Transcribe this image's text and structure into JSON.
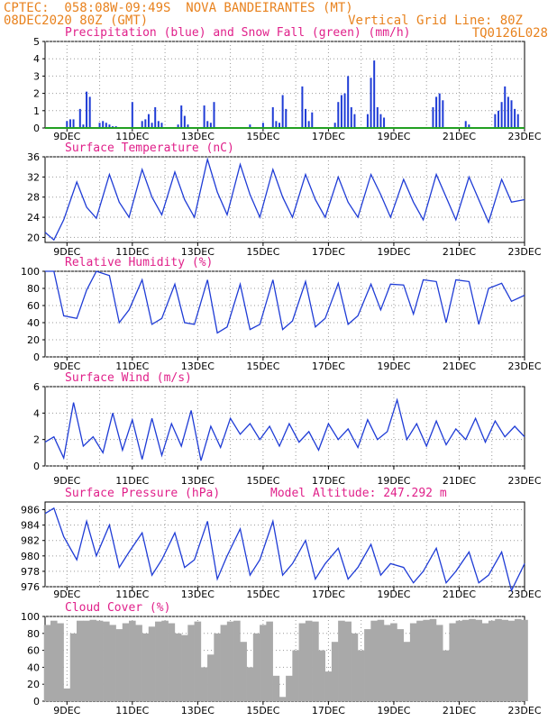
{
  "header": {
    "line1_left": "CPTEC:  058:08W-09:49S  NOVA BANDEIRANTES (MT)",
    "line2_left": "08DEC2020 80Z (GMT)",
    "line2_right": "Vertical Grid Line: 80Z",
    "line3_right": "TQ0126L028"
  },
  "colors": {
    "header": "#e8821e",
    "title": "#e0208a",
    "series": "#1f3cd6",
    "snow": "#22a022",
    "cloud": "#a9a9a9"
  },
  "x_ticks": [
    "9DEC",
    "11DEC",
    "13DEC",
    "15DEC",
    "17DEC",
    "19DEC",
    "21DEC",
    "23DEC"
  ],
  "chart_data": [
    {
      "type": "bar",
      "title": "Precipitation (blue) and Snow Fall (green) (mm/h)",
      "ylim": [
        0,
        5
      ],
      "yticks": [
        0,
        1,
        2,
        3,
        4,
        5
      ],
      "x_range_days": [
        8.33,
        23.0
      ],
      "series": [
        {
          "name": "Precipitation",
          "x": [
            9.0,
            9.1,
            9.2,
            9.4,
            9.5,
            9.6,
            9.7,
            10.0,
            10.1,
            10.2,
            10.3,
            10.4,
            10.5,
            11.0,
            11.3,
            11.4,
            11.5,
            11.6,
            11.7,
            11.8,
            11.9,
            12.4,
            12.5,
            12.6,
            12.7,
            13.2,
            13.3,
            13.4,
            13.5,
            14.6,
            15.0,
            15.3,
            15.4,
            15.5,
            15.6,
            15.7,
            16.2,
            16.3,
            16.4,
            16.5,
            17.2,
            17.3,
            17.4,
            17.5,
            17.6,
            17.7,
            17.8,
            18.2,
            18.3,
            18.4,
            18.5,
            18.6,
            18.7,
            20.2,
            20.3,
            20.4,
            20.5,
            21.2,
            21.3,
            22.1,
            22.2,
            22.3,
            22.4,
            22.5,
            22.6,
            22.7,
            22.8
          ],
          "values": [
            0.4,
            0.5,
            0.5,
            1.1,
            0.2,
            2.1,
            1.8,
            0.3,
            0.4,
            0.3,
            0.2,
            0.1,
            0.1,
            1.5,
            0.4,
            0.5,
            0.8,
            0.3,
            1.2,
            0.4,
            0.3,
            0.2,
            1.3,
            0.7,
            0.2,
            1.3,
            0.4,
            0.3,
            1.5,
            0.2,
            0.3,
            1.2,
            0.4,
            0.3,
            1.9,
            1.1,
            2.4,
            1.1,
            0.4,
            0.9,
            0.3,
            1.5,
            1.9,
            2.0,
            3.0,
            1.2,
            0.8,
            0.8,
            2.9,
            3.9,
            1.2,
            0.8,
            0.6,
            1.2,
            1.8,
            2.0,
            1.6,
            0.4,
            0.2,
            0.8,
            1.0,
            1.5,
            2.4,
            1.8,
            1.6,
            1.1,
            0.8
          ]
        },
        {
          "name": "Snow Fall",
          "x": [
            8.33,
            23.0
          ],
          "values": [
            0,
            0
          ]
        }
      ]
    },
    {
      "type": "line",
      "title": "Surface Temperature (nC)",
      "ylim": [
        19,
        36
      ],
      "yticks": [
        20,
        24,
        28,
        32,
        36
      ],
      "x_range_days": [
        8.33,
        23.0
      ],
      "series": [
        {
          "name": "Surface Temperature",
          "x": [
            8.33,
            8.6,
            8.9,
            9.3,
            9.6,
            9.9,
            10.3,
            10.6,
            10.9,
            11.3,
            11.6,
            11.9,
            12.3,
            12.6,
            12.9,
            13.3,
            13.6,
            13.9,
            14.3,
            14.6,
            14.9,
            15.3,
            15.6,
            15.9,
            16.3,
            16.6,
            16.9,
            17.3,
            17.6,
            17.9,
            18.3,
            18.6,
            18.9,
            19.3,
            19.6,
            19.9,
            20.3,
            20.6,
            20.9,
            21.3,
            21.6,
            21.9,
            22.3,
            22.6,
            23.0
          ],
          "values": [
            21.0,
            19.5,
            23.5,
            31.0,
            26.0,
            23.8,
            32.5,
            27.0,
            24.0,
            33.5,
            28.0,
            24.5,
            33.0,
            27.5,
            24.0,
            35.5,
            29.0,
            24.5,
            34.5,
            28.5,
            24.0,
            33.5,
            28.0,
            24.0,
            32.5,
            27.5,
            24.0,
            32.0,
            27.0,
            24.0,
            32.5,
            28.5,
            24.0,
            31.5,
            27.0,
            23.5,
            32.5,
            28.0,
            23.5,
            32.0,
            27.5,
            23.0,
            31.5,
            27.0,
            27.5
          ]
        }
      ]
    },
    {
      "type": "line",
      "title": "Relative Humidity (%)",
      "ylim": [
        0,
        100
      ],
      "yticks": [
        0,
        20,
        40,
        60,
        80,
        100
      ],
      "x_range_days": [
        8.33,
        23.0
      ],
      "series": [
        {
          "name": "Relative Humidity",
          "x": [
            8.33,
            8.6,
            8.9,
            9.3,
            9.6,
            9.9,
            10.3,
            10.6,
            10.9,
            11.3,
            11.6,
            11.9,
            12.3,
            12.6,
            12.9,
            13.3,
            13.6,
            13.9,
            14.3,
            14.6,
            14.9,
            15.3,
            15.6,
            15.9,
            16.3,
            16.6,
            16.9,
            17.3,
            17.6,
            17.9,
            18.3,
            18.6,
            18.9,
            19.3,
            19.6,
            19.9,
            20.3,
            20.6,
            20.9,
            21.3,
            21.6,
            21.9,
            22.3,
            22.6,
            23.0
          ],
          "values": [
            100,
            100,
            48,
            45,
            78,
            100,
            95,
            40,
            55,
            90,
            38,
            45,
            85,
            40,
            38,
            90,
            28,
            35,
            85,
            32,
            38,
            90,
            32,
            42,
            88,
            35,
            45,
            86,
            38,
            48,
            85,
            55,
            85,
            84,
            50,
            90,
            88,
            40,
            90,
            88,
            38,
            80,
            86,
            65,
            72
          ]
        }
      ]
    },
    {
      "type": "line",
      "title": "Surface Wind (m/s)",
      "ylim": [
        0,
        6
      ],
      "yticks": [
        0,
        2,
        4,
        6
      ],
      "x_range_days": [
        8.33,
        23.0
      ],
      "series": [
        {
          "name": "Surface Wind",
          "x": [
            8.33,
            8.6,
            8.9,
            9.2,
            9.5,
            9.8,
            10.1,
            10.4,
            10.7,
            11.0,
            11.3,
            11.6,
            11.9,
            12.2,
            12.5,
            12.8,
            13.1,
            13.4,
            13.7,
            14.0,
            14.3,
            14.6,
            14.9,
            15.2,
            15.5,
            15.8,
            16.1,
            16.4,
            16.7,
            17.0,
            17.3,
            17.6,
            17.9,
            18.2,
            18.5,
            18.8,
            19.1,
            19.4,
            19.7,
            20.0,
            20.3,
            20.6,
            20.9,
            21.2,
            21.5,
            21.8,
            22.1,
            22.4,
            22.7,
            23.0
          ],
          "values": [
            1.8,
            2.2,
            0.6,
            4.8,
            1.5,
            2.2,
            1.0,
            4.0,
            1.2,
            3.5,
            0.5,
            3.6,
            0.8,
            3.2,
            1.5,
            4.2,
            0.4,
            3.0,
            1.4,
            3.6,
            2.4,
            3.2,
            2.0,
            3.0,
            1.5,
            3.2,
            1.8,
            2.6,
            1.2,
            3.2,
            2.0,
            2.8,
            1.4,
            3.5,
            2.0,
            2.6,
            5.0,
            2.0,
            3.2,
            1.5,
            3.4,
            1.6,
            2.8,
            2.0,
            3.6,
            1.8,
            3.4,
            2.2,
            3.0,
            2.2
          ]
        }
      ]
    },
    {
      "type": "line",
      "title": "Surface Pressure (hPa)",
      "annotation": "Model Altitude: 247.292 m",
      "ylim": [
        976,
        987
      ],
      "yticks": [
        976,
        978,
        980,
        982,
        984,
        986
      ],
      "x_range_days": [
        8.33,
        23.0
      ],
      "series": [
        {
          "name": "Surface Pressure",
          "x": [
            8.33,
            8.6,
            8.9,
            9.3,
            9.6,
            9.9,
            10.3,
            10.6,
            10.9,
            11.3,
            11.6,
            11.9,
            12.3,
            12.6,
            12.9,
            13.3,
            13.6,
            13.9,
            14.3,
            14.6,
            14.9,
            15.3,
            15.6,
            15.9,
            16.3,
            16.6,
            16.9,
            17.3,
            17.6,
            17.9,
            18.3,
            18.6,
            18.9,
            19.3,
            19.6,
            19.9,
            20.3,
            20.6,
            20.9,
            21.3,
            21.6,
            21.9,
            22.3,
            22.6,
            23.0
          ],
          "values": [
            985.5,
            986.2,
            982.5,
            979.5,
            984.5,
            980.0,
            984.0,
            978.5,
            980.5,
            983.0,
            977.5,
            979.5,
            983.0,
            978.5,
            979.5,
            984.5,
            977.0,
            980.0,
            983.5,
            977.5,
            979.5,
            984.5,
            977.5,
            979.0,
            982.0,
            977.0,
            979.0,
            981.0,
            977.0,
            978.5,
            981.5,
            977.5,
            979.0,
            978.5,
            976.5,
            978.0,
            981.0,
            976.5,
            978.0,
            980.5,
            976.5,
            977.5,
            980.5,
            975.5,
            979.0
          ]
        }
      ]
    },
    {
      "type": "bar",
      "title": "Cloud Cover (%)",
      "ylim": [
        0,
        100
      ],
      "yticks": [
        0,
        20,
        40,
        60,
        80,
        100
      ],
      "x_range_days": [
        8.33,
        23.0
      ],
      "series": [
        {
          "name": "Cloud Cover",
          "x": [
            8.4,
            8.6,
            8.8,
            9.0,
            9.2,
            9.4,
            9.6,
            9.8,
            10.0,
            10.2,
            10.4,
            10.6,
            10.8,
            11.0,
            11.2,
            11.4,
            11.6,
            11.8,
            12.0,
            12.2,
            12.4,
            12.6,
            12.8,
            13.0,
            13.2,
            13.4,
            13.6,
            13.8,
            14.0,
            14.2,
            14.4,
            14.6,
            14.8,
            15.0,
            15.2,
            15.4,
            15.6,
            15.8,
            16.0,
            16.2,
            16.4,
            16.6,
            16.8,
            17.0,
            17.2,
            17.4,
            17.6,
            17.8,
            18.0,
            18.2,
            18.4,
            18.6,
            18.8,
            19.0,
            19.2,
            19.4,
            19.6,
            19.8,
            20.0,
            20.2,
            20.4,
            20.6,
            20.8,
            21.0,
            21.2,
            21.4,
            21.6,
            21.8,
            22.0,
            22.2,
            22.4,
            22.6,
            22.8,
            23.0
          ],
          "values": [
            90,
            95,
            92,
            15,
            80,
            95,
            95,
            96,
            95,
            94,
            90,
            85,
            92,
            95,
            90,
            80,
            88,
            94,
            95,
            92,
            80,
            78,
            90,
            94,
            40,
            55,
            80,
            90,
            94,
            95,
            70,
            40,
            80,
            90,
            94,
            30,
            5,
            30,
            60,
            92,
            95,
            94,
            60,
            35,
            70,
            95,
            94,
            80,
            60,
            85,
            95,
            96,
            90,
            92,
            85,
            70,
            92,
            95,
            96,
            97,
            90,
            60,
            92,
            95,
            96,
            97,
            96,
            92,
            95,
            97,
            96,
            95,
            97,
            96
          ]
        }
      ]
    }
  ]
}
